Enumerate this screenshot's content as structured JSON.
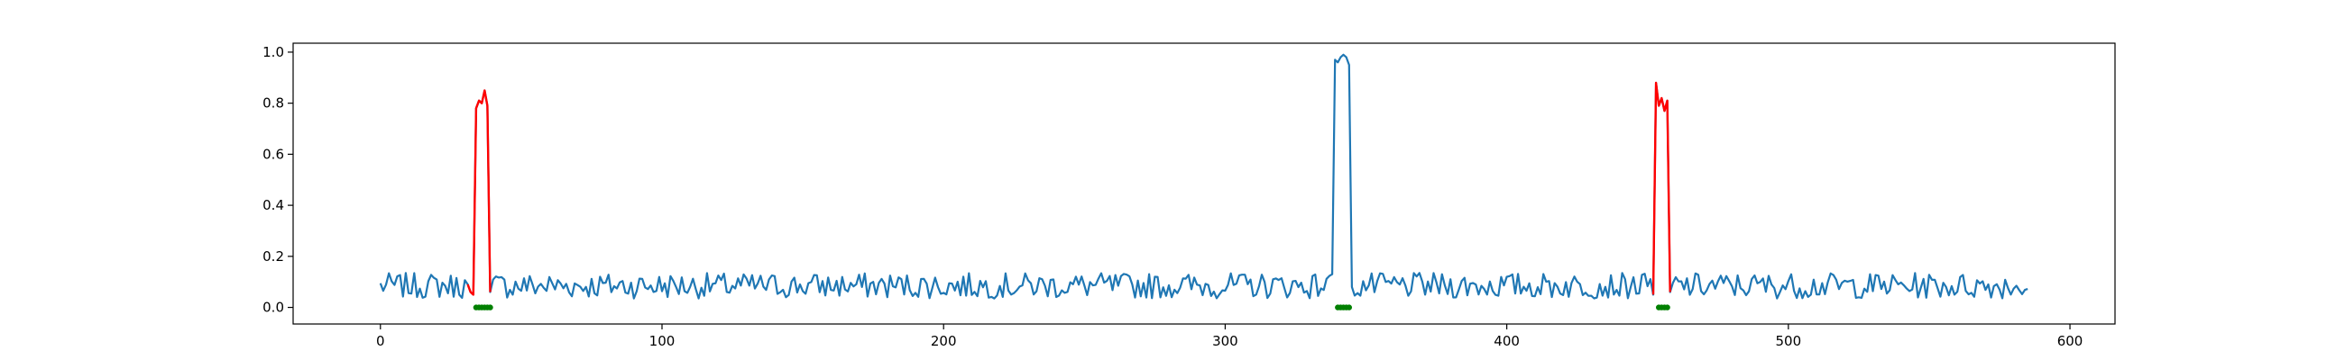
{
  "chart_data": {
    "type": "line",
    "title": "",
    "xlabel": "",
    "ylabel": "",
    "xlim": [
      -31,
      616
    ],
    "ylim": [
      -0.065,
      1.035
    ],
    "x_ticks": [
      0,
      100,
      200,
      300,
      400,
      500,
      600
    ],
    "x_tick_labels": [
      "0",
      "100",
      "200",
      "300",
      "400",
      "500",
      "600"
    ],
    "y_ticks": [
      0.0,
      0.2,
      0.4,
      0.6,
      0.8,
      1.0
    ],
    "y_tick_labels": [
      "0.0",
      "0.2",
      "0.4",
      "0.6",
      "0.8",
      "1.0"
    ],
    "grid": false,
    "legend": "none",
    "x_start": 0,
    "x_end": 585,
    "noise_mean": 0.085,
    "noise_amplitude": 0.05,
    "series": [
      {
        "color": "#1f77b4",
        "spikes": [
          {
            "x": [
              338,
              339,
              340,
              341,
              342,
              343,
              344,
              345
            ],
            "y": [
              0.13,
              0.97,
              0.96,
              0.98,
              0.99,
              0.98,
              0.95,
              0.08
            ]
          }
        ]
      },
      {
        "color": "#ff0000",
        "segments": [
          {
            "x": [
              31,
              32,
              33,
              34,
              35,
              36,
              37,
              38,
              39
            ],
            "y": [
              0.09,
              0.06,
              0.05,
              0.78,
              0.81,
              0.8,
              0.85,
              0.79,
              0.06
            ]
          },
          {
            "x": [
              452,
              453,
              454,
              455,
              456,
              457,
              458
            ],
            "y": [
              0.05,
              0.88,
              0.79,
              0.82,
              0.77,
              0.81,
              0.06
            ]
          }
        ]
      },
      {
        "color": "#008000",
        "markers": [
          {
            "x": [
              34,
              35,
              36,
              37,
              38,
              39
            ],
            "y": [
              0,
              0,
              0,
              0,
              0,
              0
            ]
          },
          {
            "x": [
              340,
              341,
              342,
              343,
              344
            ],
            "y": [
              0,
              0,
              0,
              0,
              0
            ]
          },
          {
            "x": [
              454,
              455,
              456,
              457
            ],
            "y": [
              0,
              0,
              0,
              0
            ]
          }
        ]
      }
    ]
  }
}
